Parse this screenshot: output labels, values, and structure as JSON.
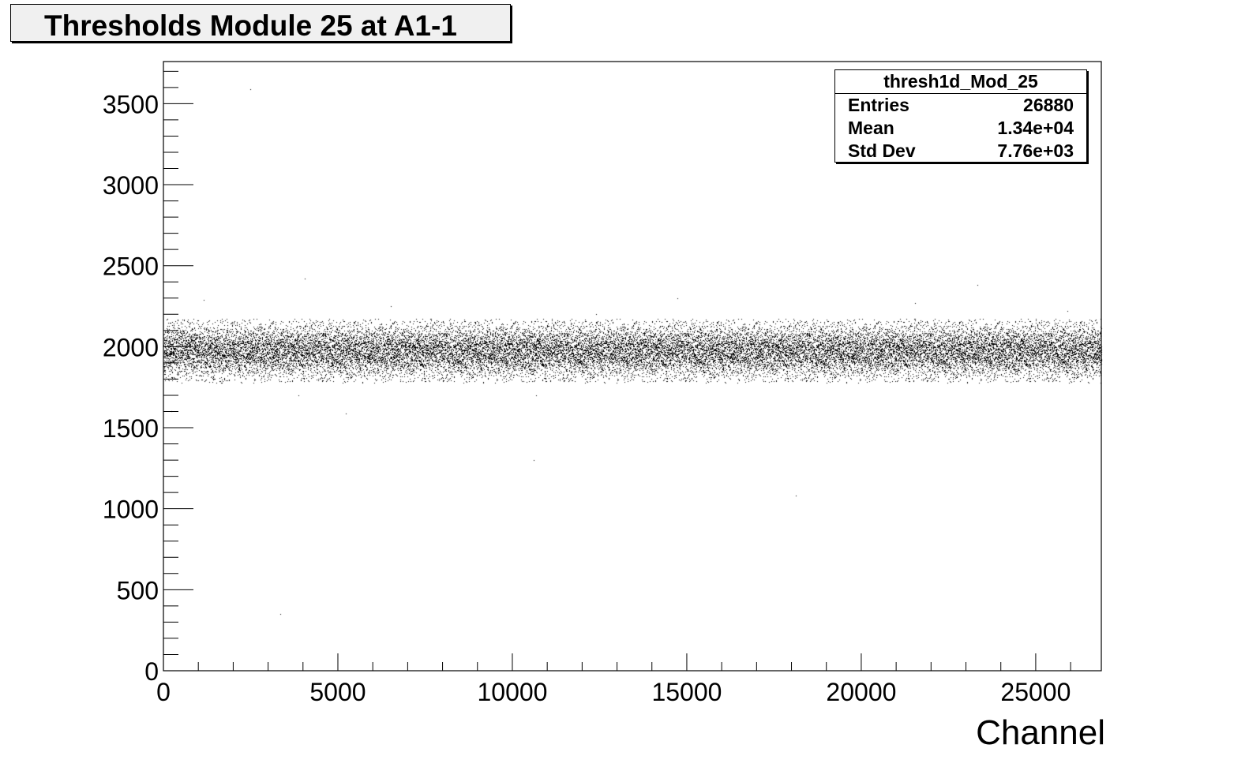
{
  "chart_data": {
    "type": "scatter",
    "title": "Thresholds Module 25 at A1-1",
    "xlabel": "Channel",
    "ylabel": "",
    "xlim": [
      0,
      26880
    ],
    "ylim": [
      0,
      3760
    ],
    "x_ticks": [
      0,
      5000,
      10000,
      15000,
      20000,
      25000
    ],
    "y_ticks": [
      0,
      500,
      1000,
      1500,
      2000,
      2500,
      3000,
      3500
    ],
    "x_tick_labels": [
      "0",
      "5000",
      "10000",
      "15000",
      "20000",
      "25000"
    ],
    "y_tick_labels": [
      "0",
      "500",
      "1000",
      "1500",
      "2000",
      "2500",
      "3000",
      "3500"
    ],
    "grid": false,
    "legend": "none",
    "marker_color": "#000000",
    "band": {
      "center": 1975,
      "half_width": 190,
      "n_points": 26880
    },
    "outliers": [
      {
        "x": 2480,
        "y": 3590
      },
      {
        "x": 4060,
        "y": 2420
      },
      {
        "x": 3350,
        "y": 350
      },
      {
        "x": 5230,
        "y": 1590
      },
      {
        "x": 10670,
        "y": 1700
      },
      {
        "x": 10610,
        "y": 1300
      },
      {
        "x": 14720,
        "y": 2300
      },
      {
        "x": 18120,
        "y": 1080
      },
      {
        "x": 23330,
        "y": 2380
      },
      {
        "x": 21550,
        "y": 2270
      },
      {
        "x": 1150,
        "y": 2290
      },
      {
        "x": 6520,
        "y": 2250
      },
      {
        "x": 3860,
        "y": 1700
      },
      {
        "x": 25900,
        "y": 2220
      },
      {
        "x": 230,
        "y": 1600
      },
      {
        "x": 12400,
        "y": 2200
      }
    ],
    "stats": {
      "name": "thresh1d_Mod_25",
      "rows": [
        {
          "label": "Entries",
          "value": "26880"
        },
        {
          "label": "Mean",
          "value": "1.34e+04"
        },
        {
          "label": "Std Dev",
          "value": "7.76e+03"
        }
      ]
    }
  }
}
